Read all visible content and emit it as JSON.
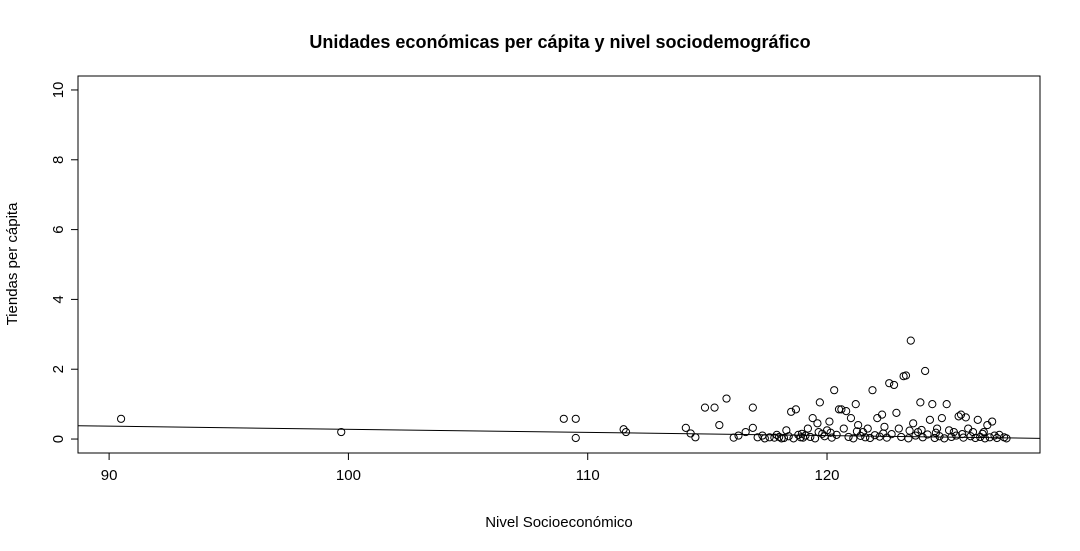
{
  "chart_data": {
    "type": "scatter",
    "title": "Unidades económicas per cápita y nivel sociodemográfico",
    "xlabel": "Nivel Socioeconómico",
    "ylabel": "Tiendas per cápita",
    "xlim": [
      88.7,
      128.9
    ],
    "ylim": [
      -0.4,
      10.4
    ],
    "xticks": [
      90,
      100,
      110,
      120
    ],
    "yticks": [
      0,
      2,
      4,
      6,
      8,
      10
    ],
    "grid": false,
    "legend": "none",
    "regression_line": {
      "x": [
        88.7,
        128.9
      ],
      "y": [
        0.38,
        0.02
      ]
    },
    "points": [
      [
        90.5,
        0.58
      ],
      [
        99.7,
        0.2
      ],
      [
        109.0,
        0.58
      ],
      [
        109.5,
        0.58
      ],
      [
        109.5,
        0.03
      ],
      [
        111.5,
        0.28
      ],
      [
        111.6,
        0.2
      ],
      [
        114.1,
        0.32
      ],
      [
        114.3,
        0.16
      ],
      [
        114.5,
        0.05
      ],
      [
        114.9,
        0.9
      ],
      [
        115.3,
        0.9
      ],
      [
        115.8,
        1.16
      ],
      [
        115.5,
        0.4
      ],
      [
        116.1,
        0.04
      ],
      [
        116.3,
        0.1
      ],
      [
        116.6,
        0.2
      ],
      [
        116.9,
        0.32
      ],
      [
        116.9,
        0.9
      ],
      [
        117.1,
        0.05
      ],
      [
        117.3,
        0.1
      ],
      [
        117.6,
        0.05
      ],
      [
        117.9,
        0.12
      ],
      [
        118.1,
        0.02
      ],
      [
        118.3,
        0.25
      ],
      [
        118.5,
        0.78
      ],
      [
        118.7,
        0.85
      ],
      [
        118.9,
        0.05
      ],
      [
        119.1,
        0.1
      ],
      [
        119.2,
        0.3
      ],
      [
        119.4,
        0.6
      ],
      [
        119.6,
        0.45
      ],
      [
        119.7,
        1.05
      ],
      [
        119.8,
        0.15
      ],
      [
        120.0,
        0.25
      ],
      [
        120.1,
        0.5
      ],
      [
        120.3,
        1.4
      ],
      [
        120.5,
        0.85
      ],
      [
        120.6,
        0.85
      ],
      [
        120.7,
        0.3
      ],
      [
        120.8,
        0.8
      ],
      [
        121.0,
        0.6
      ],
      [
        121.2,
        1.0
      ],
      [
        121.3,
        0.4
      ],
      [
        121.5,
        0.2
      ],
      [
        121.7,
        0.3
      ],
      [
        121.9,
        1.4
      ],
      [
        122.1,
        0.6
      ],
      [
        122.3,
        0.7
      ],
      [
        122.4,
        0.35
      ],
      [
        122.6,
        1.6
      ],
      [
        122.8,
        1.55
      ],
      [
        122.9,
        0.75
      ],
      [
        123.0,
        0.3
      ],
      [
        123.2,
        1.8
      ],
      [
        123.3,
        1.82
      ],
      [
        123.5,
        2.82
      ],
      [
        123.6,
        0.45
      ],
      [
        123.8,
        0.2
      ],
      [
        123.9,
        1.05
      ],
      [
        124.1,
        1.95
      ],
      [
        124.3,
        0.55
      ],
      [
        124.4,
        1.0
      ],
      [
        124.6,
        0.3
      ],
      [
        124.8,
        0.6
      ],
      [
        125.0,
        1.0
      ],
      [
        125.1,
        0.25
      ],
      [
        125.3,
        0.2
      ],
      [
        125.5,
        0.65
      ],
      [
        125.6,
        0.7
      ],
      [
        125.8,
        0.62
      ],
      [
        125.9,
        0.3
      ],
      [
        126.1,
        0.2
      ],
      [
        126.3,
        0.55
      ],
      [
        126.5,
        0.15
      ],
      [
        126.7,
        0.4
      ],
      [
        126.9,
        0.5
      ],
      [
        127.0,
        0.1
      ],
      [
        127.2,
        0.12
      ],
      [
        127.4,
        0.05
      ],
      [
        127.5,
        0.02
      ],
      [
        117.4,
        0.02
      ],
      [
        117.8,
        0.04
      ],
      [
        118.0,
        0.06
      ],
      [
        118.2,
        0.03
      ],
      [
        118.4,
        0.08
      ],
      [
        118.6,
        0.02
      ],
      [
        118.8,
        0.12
      ],
      [
        119.0,
        0.04
      ],
      [
        119.3,
        0.06
      ],
      [
        119.5,
        0.02
      ],
      [
        119.9,
        0.08
      ],
      [
        120.2,
        0.04
      ],
      [
        120.4,
        0.12
      ],
      [
        120.9,
        0.06
      ],
      [
        121.1,
        0.02
      ],
      [
        121.4,
        0.09
      ],
      [
        121.6,
        0.05
      ],
      [
        121.8,
        0.03
      ],
      [
        122.0,
        0.11
      ],
      [
        122.2,
        0.07
      ],
      [
        122.5,
        0.04
      ],
      [
        122.7,
        0.14
      ],
      [
        123.1,
        0.06
      ],
      [
        123.4,
        0.02
      ],
      [
        123.7,
        0.1
      ],
      [
        124.0,
        0.05
      ],
      [
        124.2,
        0.13
      ],
      [
        124.5,
        0.03
      ],
      [
        124.7,
        0.08
      ],
      [
        124.9,
        0.02
      ],
      [
        125.2,
        0.06
      ],
      [
        125.4,
        0.1
      ],
      [
        125.7,
        0.04
      ],
      [
        126.0,
        0.08
      ],
      [
        126.2,
        0.03
      ],
      [
        126.4,
        0.06
      ],
      [
        126.6,
        0.02
      ],
      [
        126.8,
        0.05
      ],
      [
        127.1,
        0.03
      ],
      [
        120.15,
        0.18
      ],
      [
        121.25,
        0.22
      ],
      [
        122.35,
        0.16
      ],
      [
        123.45,
        0.24
      ],
      [
        124.55,
        0.18
      ],
      [
        125.65,
        0.14
      ],
      [
        119.65,
        0.2
      ],
      [
        118.95,
        0.15
      ],
      [
        126.55,
        0.2
      ],
      [
        123.95,
        0.26
      ]
    ]
  }
}
